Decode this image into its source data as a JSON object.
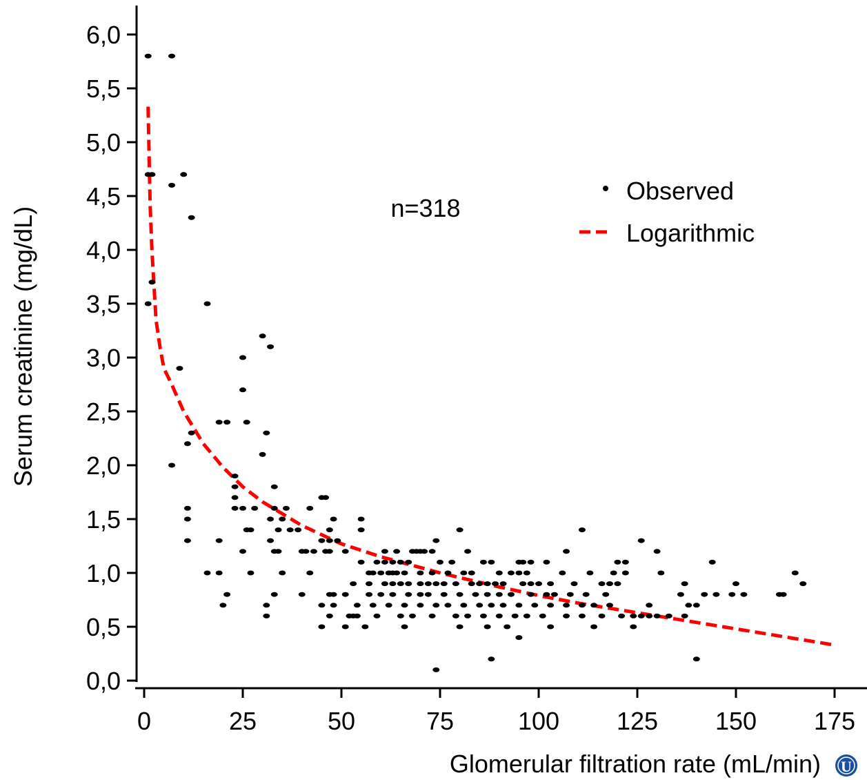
{
  "chart_data": {
    "type": "scatter",
    "title": "",
    "xlabel": "Glomerular filtration rate (mL/min)",
    "ylabel": "Serum creatinine (mg/dL)",
    "xlim": [
      0,
      175
    ],
    "ylim": [
      0,
      6
    ],
    "x_ticks": [
      0,
      25,
      50,
      75,
      100,
      125,
      150,
      175
    ],
    "x_tick_labels": [
      "0",
      "25",
      "50",
      "75",
      "100",
      "125",
      "150",
      "175"
    ],
    "y_ticks": [
      0,
      0.5,
      1,
      1.5,
      2,
      2.5,
      3,
      3.5,
      4,
      4.5,
      5,
      5.5,
      6
    ],
    "y_tick_labels": [
      "0,0",
      "0,5",
      "1,0",
      "1,5",
      "2,0",
      "2,5",
      "3,0",
      "3,5",
      "4,0",
      "4,5",
      "5,0",
      "5,5",
      "6,0"
    ],
    "grid": false,
    "legend_position": "top-right",
    "annotation": "n=318",
    "series": [
      {
        "name": "Observed",
        "kind": "scatter",
        "color": "#000000",
        "points": [
          [
            1,
            5.8
          ],
          [
            7,
            5.8
          ],
          [
            1,
            4.7
          ],
          [
            2,
            4.7
          ],
          [
            10,
            4.7
          ],
          [
            7,
            4.6
          ],
          [
            12,
            4.3
          ],
          [
            2,
            3.7
          ],
          [
            1,
            3.5
          ],
          [
            16,
            3.5
          ],
          [
            30,
            3.2
          ],
          [
            32,
            3.1
          ],
          [
            25,
            3.0
          ],
          [
            9,
            2.9
          ],
          [
            25,
            2.7
          ],
          [
            19,
            2.4
          ],
          [
            21,
            2.4
          ],
          [
            26,
            2.4
          ],
          [
            12,
            2.3
          ],
          [
            31,
            2.3
          ],
          [
            11,
            2.2
          ],
          [
            30,
            2.1
          ],
          [
            7,
            2.0
          ],
          [
            23,
            1.9
          ],
          [
            23,
            1.8
          ],
          [
            33,
            1.8
          ],
          [
            23,
            1.7
          ],
          [
            45,
            1.7
          ],
          [
            46,
            1.7
          ],
          [
            11,
            1.6
          ],
          [
            23,
            1.6
          ],
          [
            25,
            1.6
          ],
          [
            28,
            1.6
          ],
          [
            33,
            1.6
          ],
          [
            36,
            1.6
          ],
          [
            42,
            1.6
          ],
          [
            11,
            1.5
          ],
          [
            32,
            1.5
          ],
          [
            35,
            1.5
          ],
          [
            48,
            1.5
          ],
          [
            55,
            1.5
          ],
          [
            26,
            1.4
          ],
          [
            27,
            1.4
          ],
          [
            34,
            1.4
          ],
          [
            37,
            1.4
          ],
          [
            39,
            1.4
          ],
          [
            47,
            1.4
          ],
          [
            55,
            1.4
          ],
          [
            80,
            1.4
          ],
          [
            111,
            1.4
          ],
          [
            11,
            1.3
          ],
          [
            19,
            1.3
          ],
          [
            32,
            1.3
          ],
          [
            45,
            1.3
          ],
          [
            47,
            1.3
          ],
          [
            49,
            1.3
          ],
          [
            74,
            1.3
          ],
          [
            126,
            1.3
          ],
          [
            25,
            1.2
          ],
          [
            33,
            1.2
          ],
          [
            34,
            1.2
          ],
          [
            40,
            1.2
          ],
          [
            41,
            1.2
          ],
          [
            43,
            1.2
          ],
          [
            46,
            1.2
          ],
          [
            47,
            1.2
          ],
          [
            51,
            1.2
          ],
          [
            61,
            1.2
          ],
          [
            64,
            1.2
          ],
          [
            68,
            1.2
          ],
          [
            69,
            1.2
          ],
          [
            70,
            1.2
          ],
          [
            71,
            1.2
          ],
          [
            73,
            1.2
          ],
          [
            82,
            1.2
          ],
          [
            107,
            1.2
          ],
          [
            130,
            1.2
          ],
          [
            55,
            1.1
          ],
          [
            59,
            1.1
          ],
          [
            61,
            1.1
          ],
          [
            63,
            1.1
          ],
          [
            65,
            1.1
          ],
          [
            67,
            1.1
          ],
          [
            75,
            1.1
          ],
          [
            78,
            1.1
          ],
          [
            86,
            1.1
          ],
          [
            88,
            1.1
          ],
          [
            95,
            1.1
          ],
          [
            96,
            1.1
          ],
          [
            98,
            1.1
          ],
          [
            102,
            1.1
          ],
          [
            120,
            1.1
          ],
          [
            122,
            1.1
          ],
          [
            144,
            1.1
          ],
          [
            16,
            1.0
          ],
          [
            19,
            1.0
          ],
          [
            27,
            1.0
          ],
          [
            35,
            1.0
          ],
          [
            42,
            1.0
          ],
          [
            57,
            1.0
          ],
          [
            58,
            1.0
          ],
          [
            60,
            1.0
          ],
          [
            62,
            1.0
          ],
          [
            63,
            1.0
          ],
          [
            64,
            1.0
          ],
          [
            66,
            1.0
          ],
          [
            70,
            1.0
          ],
          [
            73,
            1.0
          ],
          [
            77,
            1.0
          ],
          [
            81,
            1.0
          ],
          [
            83,
            1.0
          ],
          [
            90,
            1.0
          ],
          [
            93,
            1.0
          ],
          [
            95,
            1.0
          ],
          [
            97,
            1.0
          ],
          [
            106,
            1.0
          ],
          [
            113,
            1.0
          ],
          [
            119,
            1.0
          ],
          [
            122,
            1.0
          ],
          [
            131,
            1.0
          ],
          [
            165,
            1.0
          ],
          [
            53,
            0.9
          ],
          [
            57,
            0.9
          ],
          [
            61,
            0.9
          ],
          [
            63,
            0.9
          ],
          [
            65,
            0.9
          ],
          [
            67,
            0.9
          ],
          [
            70,
            0.9
          ],
          [
            72,
            0.9
          ],
          [
            74,
            0.9
          ],
          [
            76,
            0.9
          ],
          [
            79,
            0.9
          ],
          [
            83,
            0.9
          ],
          [
            85,
            0.9
          ],
          [
            87,
            0.9
          ],
          [
            89,
            0.9
          ],
          [
            91,
            0.9
          ],
          [
            96,
            0.9
          ],
          [
            98,
            0.9
          ],
          [
            100,
            0.9
          ],
          [
            103,
            0.9
          ],
          [
            109,
            0.9
          ],
          [
            116,
            0.9
          ],
          [
            118,
            0.9
          ],
          [
            120,
            0.9
          ],
          [
            137,
            0.9
          ],
          [
            150,
            0.9
          ],
          [
            167,
            0.9
          ],
          [
            21,
            0.8
          ],
          [
            33,
            0.8
          ],
          [
            40,
            0.8
          ],
          [
            47,
            0.8
          ],
          [
            48,
            0.8
          ],
          [
            51,
            0.8
          ],
          [
            57,
            0.8
          ],
          [
            60,
            0.8
          ],
          [
            63,
            0.8
          ],
          [
            67,
            0.8
          ],
          [
            70,
            0.8
          ],
          [
            72,
            0.8
          ],
          [
            76,
            0.8
          ],
          [
            80,
            0.8
          ],
          [
            84,
            0.8
          ],
          [
            87,
            0.8
          ],
          [
            90,
            0.8
          ],
          [
            93,
            0.8
          ],
          [
            98,
            0.8
          ],
          [
            102,
            0.8
          ],
          [
            104,
            0.8
          ],
          [
            108,
            0.8
          ],
          [
            112,
            0.8
          ],
          [
            117,
            0.8
          ],
          [
            136,
            0.8
          ],
          [
            142,
            0.8
          ],
          [
            145,
            0.8
          ],
          [
            149,
            0.8
          ],
          [
            152,
            0.8
          ],
          [
            161,
            0.8
          ],
          [
            162,
            0.8
          ],
          [
            20,
            0.7
          ],
          [
            31,
            0.7
          ],
          [
            45,
            0.7
          ],
          [
            48,
            0.7
          ],
          [
            54,
            0.7
          ],
          [
            58,
            0.7
          ],
          [
            62,
            0.7
          ],
          [
            66,
            0.7
          ],
          [
            70,
            0.7
          ],
          [
            74,
            0.7
          ],
          [
            77,
            0.7
          ],
          [
            81,
            0.7
          ],
          [
            85,
            0.7
          ],
          [
            88,
            0.7
          ],
          [
            91,
            0.7
          ],
          [
            95,
            0.7
          ],
          [
            99,
            0.7
          ],
          [
            103,
            0.7
          ],
          [
            107,
            0.7
          ],
          [
            111,
            0.7
          ],
          [
            114,
            0.7
          ],
          [
            118,
            0.7
          ],
          [
            128,
            0.7
          ],
          [
            138,
            0.7
          ],
          [
            140,
            0.7
          ],
          [
            31,
            0.6
          ],
          [
            47,
            0.6
          ],
          [
            52,
            0.6
          ],
          [
            53,
            0.6
          ],
          [
            54,
            0.6
          ],
          [
            59,
            0.6
          ],
          [
            65,
            0.6
          ],
          [
            68,
            0.6
          ],
          [
            73,
            0.6
          ],
          [
            79,
            0.6
          ],
          [
            82,
            0.6
          ],
          [
            86,
            0.6
          ],
          [
            90,
            0.6
          ],
          [
            94,
            0.6
          ],
          [
            97,
            0.6
          ],
          [
            101,
            0.6
          ],
          [
            107,
            0.6
          ],
          [
            111,
            0.6
          ],
          [
            116,
            0.6
          ],
          [
            121,
            0.6
          ],
          [
            124,
            0.6
          ],
          [
            126,
            0.6
          ],
          [
            128,
            0.6
          ],
          [
            130,
            0.6
          ],
          [
            133,
            0.6
          ],
          [
            137,
            0.6
          ],
          [
            45,
            0.5
          ],
          [
            51,
            0.5
          ],
          [
            56,
            0.5
          ],
          [
            66,
            0.5
          ],
          [
            80,
            0.5
          ],
          [
            87,
            0.5
          ],
          [
            92,
            0.5
          ],
          [
            103,
            0.5
          ],
          [
            114,
            0.5
          ],
          [
            124,
            0.5
          ],
          [
            95,
            0.4
          ],
          [
            88,
            0.2
          ],
          [
            140,
            0.2
          ],
          [
            74,
            0.1
          ]
        ]
      },
      {
        "name": "Logarithmic",
        "kind": "line",
        "style": "dashed",
        "color": "#ff0000",
        "x": [
          1,
          1.5,
          2,
          3,
          4,
          5,
          7,
          10,
          15,
          20,
          25,
          30,
          40,
          50,
          60,
          75,
          90,
          100,
          110,
          125,
          150,
          175
        ],
        "y": [
          5.33,
          4.43,
          3.98,
          3.35,
          3.1,
          2.9,
          2.75,
          2.5,
          2.2,
          1.98,
          1.8,
          1.66,
          1.44,
          1.27,
          1.15,
          1.0,
          0.87,
          0.79,
          0.72,
          0.63,
          0.48,
          0.33
        ]
      }
    ]
  }
}
